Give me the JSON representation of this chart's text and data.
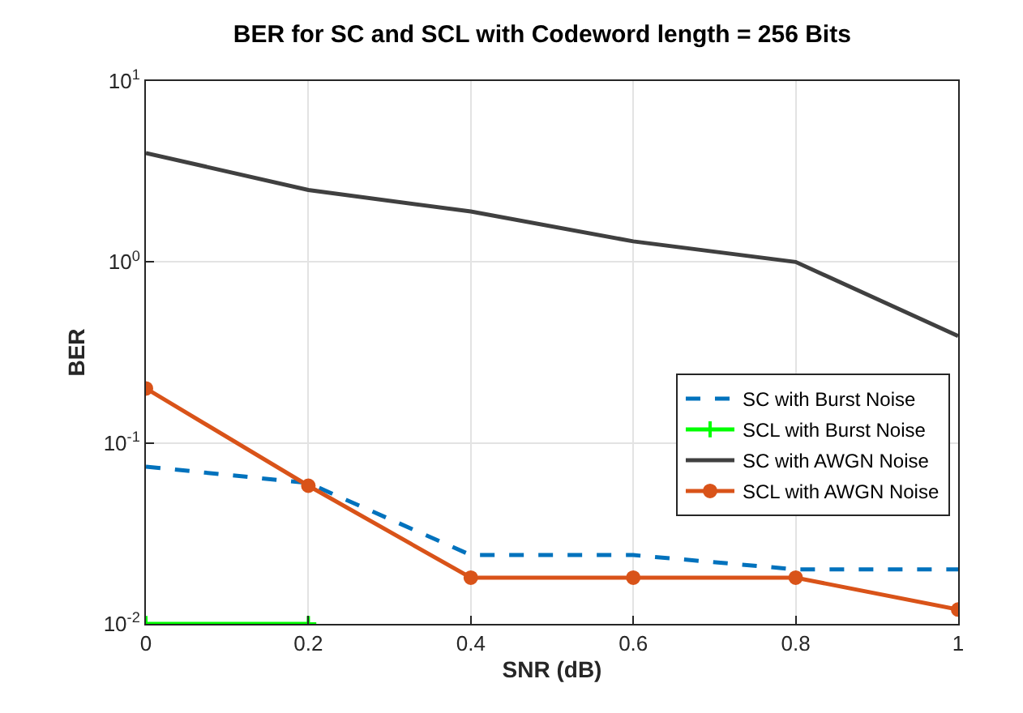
{
  "chart_data": {
    "type": "line",
    "title": "BER for SC and SCL with Codeword length = 256 Bits",
    "xlabel": "SNR (dB)",
    "ylabel": "BER",
    "x": [
      0,
      0.2,
      0.4,
      0.6,
      0.8,
      1
    ],
    "series": [
      {
        "name": "SC with Burst Noise",
        "color": "#0072bd",
        "line_style": "dashed",
        "marker": "none",
        "values": [
          0.074,
          0.06,
          0.024,
          0.024,
          0.02,
          0.02
        ]
      },
      {
        "name": "SCL with Burst Noise",
        "color": "#00ff00",
        "line_style": "solid",
        "marker": "cross",
        "values": [
          0.01,
          0.01,
          null,
          null,
          null,
          null
        ]
      },
      {
        "name": "SC with AWGN Noise",
        "color": "#404040",
        "line_style": "solid",
        "marker": "none",
        "values": [
          4,
          2.5,
          1.9,
          1.3,
          1.0,
          0.39
        ]
      },
      {
        "name": "SCL with AWGN Noise",
        "color": "#d95319",
        "line_style": "solid",
        "marker": "circle",
        "values": [
          0.2,
          0.058,
          0.018,
          0.018,
          0.018,
          0.012
        ]
      }
    ],
    "log": "y",
    "grid": true,
    "legend": "right",
    "xlim": [
      0,
      1
    ],
    "xticks": [
      0,
      0.2,
      0.4,
      0.6,
      0.8,
      1
    ],
    "ylim": [
      0.01,
      10
    ],
    "yticks": [
      {
        "value": 0.01,
        "label": "10$^{-2}$"
      },
      {
        "value": 0.1,
        "label": "10$^{-1}$"
      },
      {
        "value": 1,
        "label": "10$^{0}$"
      },
      {
        "value": 10,
        "label": "10$^{1}$"
      }
    ]
  }
}
